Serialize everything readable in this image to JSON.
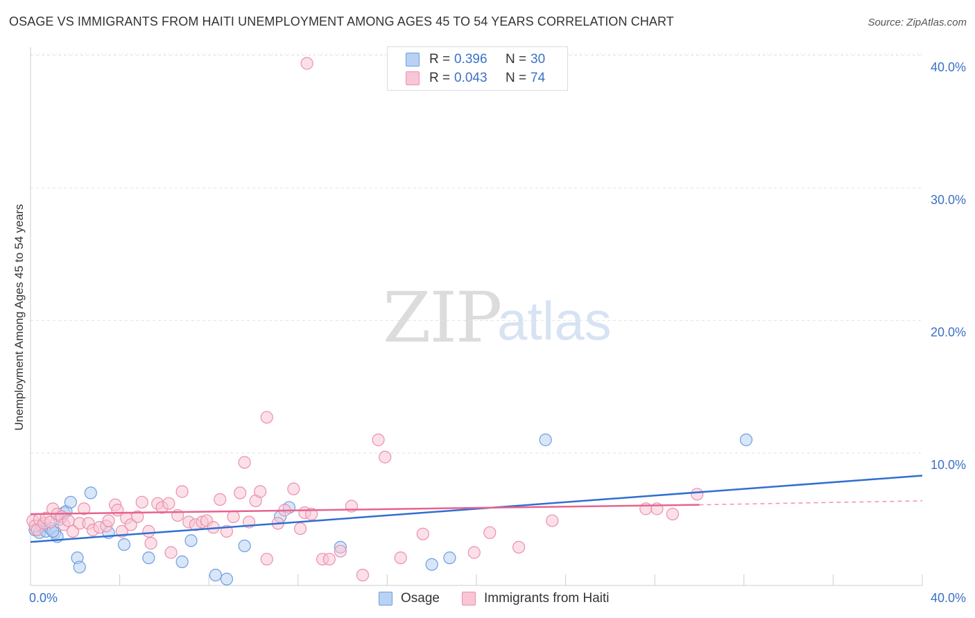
{
  "title": "OSAGE VS IMMIGRANTS FROM HAITI UNEMPLOYMENT AMONG AGES 45 TO 54 YEARS CORRELATION CHART",
  "source": "Source: ZipAtlas.com",
  "watermark": {
    "zip": "ZIP",
    "atlas": "atlas"
  },
  "legend": {
    "r_label": "R =",
    "n_label": "N =",
    "rows": [
      {
        "name": "Osage",
        "r": "0.396",
        "n": "30"
      },
      {
        "name": "Immigrants from Haiti",
        "r": "0.043",
        "n": "74"
      }
    ]
  },
  "colors": {
    "osage_fill": "#b9d1f3",
    "osage_stroke": "#6b9ee0",
    "osage_line": "#2f6fd1",
    "haiti_fill": "#f8c6d5",
    "haiti_stroke": "#ec8fac",
    "haiti_line": "#e8628e",
    "axis_tick": "#3a70c8",
    "grid": "#e2e2e2"
  },
  "chart_data": {
    "type": "scatter",
    "title": "OSAGE VS IMMIGRANTS FROM HAITI UNEMPLOYMENT AMONG AGES 45 TO 54 YEARS CORRELATION CHART",
    "xlabel": "",
    "ylabel": "Unemployment Among Ages 45 to 54 years",
    "xlim": [
      0,
      40
    ],
    "ylim": [
      0,
      42
    ],
    "x_tick_labels": [
      {
        "value": 0,
        "label": "0.0%"
      },
      {
        "value": 40,
        "label": "40.0%"
      }
    ],
    "y_tick_labels": [
      {
        "value": 10,
        "label": "10.0%"
      },
      {
        "value": 20,
        "label": "20.0%"
      },
      {
        "value": 30,
        "label": "30.0%"
      },
      {
        "value": 40,
        "label": "40.0%"
      }
    ],
    "x_minor_ticks": [
      0,
      4,
      8,
      12,
      16,
      20,
      24,
      28,
      32,
      36,
      40
    ],
    "series": [
      {
        "name": "Osage",
        "r": 0.396,
        "n": 30,
        "points": [
          [
            0.2,
            4.2
          ],
          [
            0.4,
            4.0
          ],
          [
            0.5,
            4.5
          ],
          [
            0.7,
            4.1
          ],
          [
            0.9,
            4.3
          ],
          [
            1.1,
            4.0
          ],
          [
            1.2,
            3.7
          ],
          [
            1.3,
            5.0
          ],
          [
            1.5,
            5.5
          ],
          [
            1.6,
            5.6
          ],
          [
            1.8,
            6.3
          ],
          [
            2.1,
            2.1
          ],
          [
            2.2,
            1.4
          ],
          [
            2.7,
            7.0
          ],
          [
            3.5,
            4.0
          ],
          [
            4.2,
            3.1
          ],
          [
            5.3,
            2.1
          ],
          [
            6.8,
            1.8
          ],
          [
            7.2,
            3.4
          ],
          [
            8.3,
            0.8
          ],
          [
            8.8,
            0.5
          ],
          [
            9.6,
            3.0
          ],
          [
            11.2,
            5.2
          ],
          [
            11.6,
            5.9
          ],
          [
            13.9,
            2.9
          ],
          [
            18.0,
            1.6
          ],
          [
            18.8,
            2.1
          ],
          [
            23.1,
            11.0
          ],
          [
            32.1,
            11.0
          ],
          [
            1.0,
            4.1
          ]
        ],
        "trend": {
          "x": [
            0,
            40
          ],
          "y": [
            3.3,
            8.3
          ]
        }
      },
      {
        "name": "Immigrants from Haiti",
        "r": 0.043,
        "n": 74,
        "points": [
          [
            0.1,
            4.9
          ],
          [
            0.2,
            4.5
          ],
          [
            0.3,
            4.2
          ],
          [
            0.4,
            5.0
          ],
          [
            0.6,
            4.7
          ],
          [
            0.7,
            5.1
          ],
          [
            0.9,
            4.8
          ],
          [
            1.0,
            5.8
          ],
          [
            1.2,
            5.4
          ],
          [
            1.4,
            5.2
          ],
          [
            1.5,
            4.6
          ],
          [
            1.7,
            4.9
          ],
          [
            1.9,
            4.1
          ],
          [
            2.2,
            4.7
          ],
          [
            2.4,
            5.8
          ],
          [
            2.6,
            4.7
          ],
          [
            2.8,
            4.2
          ],
          [
            3.1,
            4.4
          ],
          [
            3.4,
            4.5
          ],
          [
            3.5,
            4.9
          ],
          [
            3.8,
            6.1
          ],
          [
            3.9,
            5.7
          ],
          [
            4.1,
            4.1
          ],
          [
            4.3,
            5.1
          ],
          [
            4.5,
            4.6
          ],
          [
            4.8,
            5.2
          ],
          [
            5.0,
            6.3
          ],
          [
            5.3,
            4.1
          ],
          [
            5.4,
            3.2
          ],
          [
            5.7,
            6.2
          ],
          [
            5.9,
            5.9
          ],
          [
            6.2,
            6.2
          ],
          [
            6.3,
            2.5
          ],
          [
            6.6,
            5.3
          ],
          [
            6.8,
            7.1
          ],
          [
            7.1,
            4.8
          ],
          [
            7.4,
            4.6
          ],
          [
            7.7,
            4.8
          ],
          [
            7.9,
            4.9
          ],
          [
            8.2,
            4.4
          ],
          [
            8.5,
            6.5
          ],
          [
            8.8,
            4.1
          ],
          [
            9.1,
            5.2
          ],
          [
            9.4,
            7.0
          ],
          [
            9.6,
            9.3
          ],
          [
            9.8,
            4.8
          ],
          [
            10.1,
            6.4
          ],
          [
            10.3,
            7.1
          ],
          [
            10.6,
            2.0
          ],
          [
            10.6,
            12.7
          ],
          [
            11.1,
            4.7
          ],
          [
            11.4,
            5.7
          ],
          [
            11.8,
            7.3
          ],
          [
            12.1,
            4.3
          ],
          [
            12.3,
            5.5
          ],
          [
            12.6,
            5.4
          ],
          [
            12.4,
            39.4
          ],
          [
            13.1,
            2.0
          ],
          [
            13.4,
            2.0
          ],
          [
            13.9,
            2.6
          ],
          [
            14.4,
            6.0
          ],
          [
            14.9,
            0.8
          ],
          [
            15.6,
            11.0
          ],
          [
            15.9,
            9.7
          ],
          [
            16.6,
            2.1
          ],
          [
            17.6,
            3.9
          ],
          [
            19.9,
            2.5
          ],
          [
            20.6,
            4.0
          ],
          [
            21.9,
            2.9
          ],
          [
            23.4,
            4.9
          ],
          [
            27.6,
            5.8
          ],
          [
            28.1,
            5.8
          ],
          [
            28.8,
            5.4
          ],
          [
            29.9,
            6.9
          ]
        ],
        "trend": {
          "x": [
            0,
            30
          ],
          "y": [
            5.4,
            6.1
          ]
        },
        "trend_dashed": {
          "x": [
            30,
            40
          ],
          "y": [
            6.1,
            6.4
          ]
        }
      }
    ]
  }
}
